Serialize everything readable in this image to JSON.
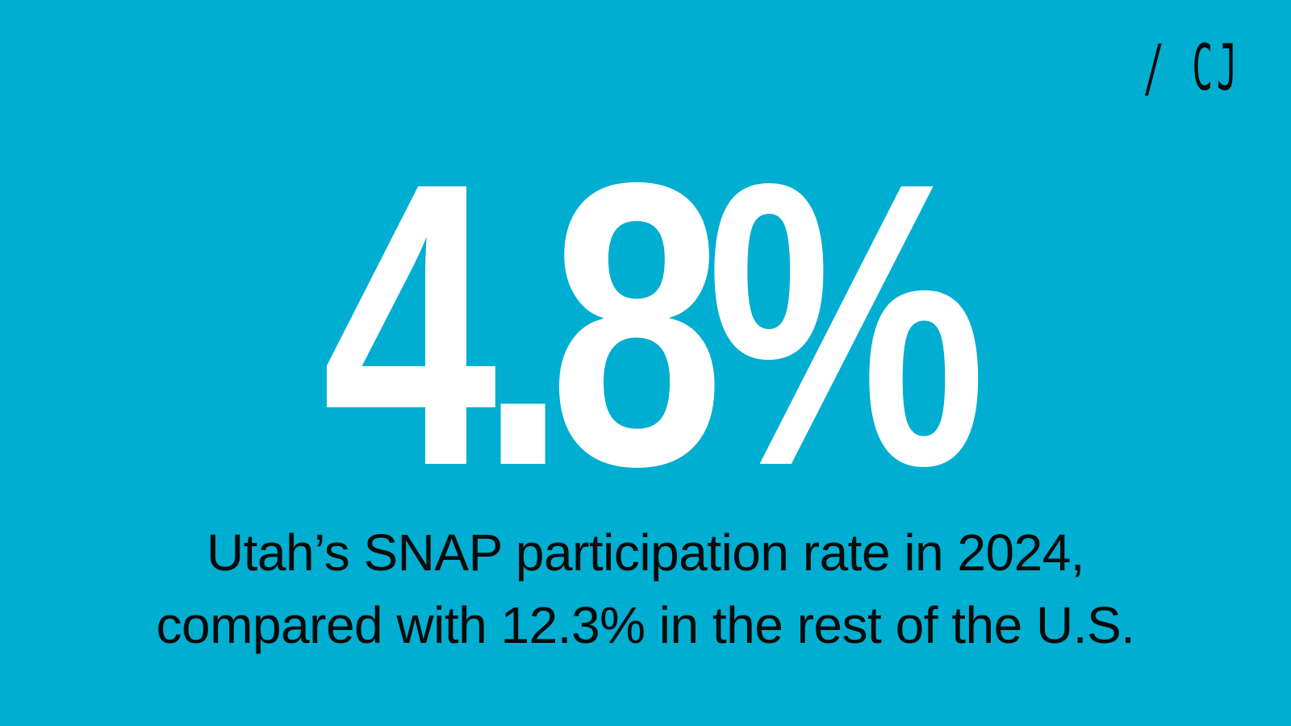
{
  "colors": {
    "background": "#00AED1",
    "stat": "#FFFFFF",
    "text": "#0A0A0A"
  },
  "logo": {
    "text": "/ CJ"
  },
  "stat": {
    "value": "4.8%"
  },
  "caption": {
    "line1": "Utah’s SNAP participation rate in 2024,",
    "line2": "compared with 12.3% in the rest of the U.S."
  }
}
